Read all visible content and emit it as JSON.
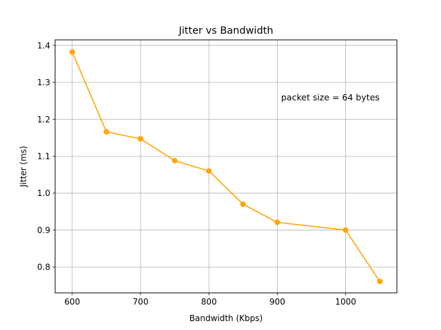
{
  "chart_data": {
    "type": "line",
    "title": "Jitter vs Bandwidth",
    "xlabel": "Bandwidth (Kbps)",
    "ylabel": "Jitter (ms)",
    "annotation": "packet size = 64 bytes",
    "x": [
      600,
      650,
      700,
      750,
      800,
      850,
      900,
      1000,
      1050
    ],
    "series": [
      {
        "values": [
          1.382,
          1.166,
          1.147,
          1.088,
          1.06,
          0.97,
          0.921,
          0.9,
          0.761
        ]
      }
    ],
    "xlim": [
      575,
      1075
    ],
    "ylim": [
      0.73,
      1.415
    ],
    "xticks": [
      600,
      700,
      800,
      900,
      1000
    ],
    "xtick_labels": [
      "600",
      "700",
      "800",
      "900",
      "1000"
    ],
    "yticks": [
      0.8,
      0.9,
      1.0,
      1.1,
      1.2,
      1.3,
      1.4
    ],
    "ytick_labels": [
      "0.8",
      "0.9",
      "1.0",
      "1.1",
      "1.2",
      "1.3",
      "1.4"
    ],
    "grid": true,
    "color": "#ffa500"
  }
}
